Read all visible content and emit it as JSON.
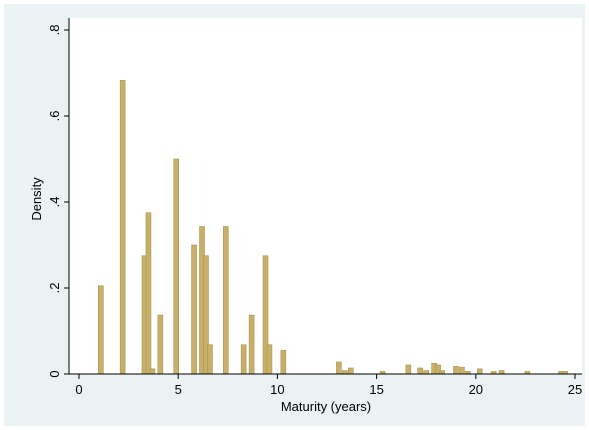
{
  "chart_data": {
    "type": "bar",
    "xlabel": "Maturity (years)",
    "ylabel": "Density",
    "xlim": [
      0,
      25
    ],
    "ylim": [
      0,
      0.8
    ],
    "xticks": [
      0,
      5,
      10,
      15,
      20,
      25
    ],
    "yticks": [
      0,
      0.2,
      0.4,
      0.6,
      0.8
    ],
    "ytick_labels": [
      "0",
      ".2",
      ".4",
      ".6",
      ".8"
    ],
    "grid": false,
    "bar_width": 0.25,
    "colors": {
      "bar": "#c8b06a",
      "bar_edge": "#a89550",
      "plot_bg": "#ffffff",
      "outer_bg": "#eaf2f3"
    },
    "x": [
      1.1,
      2.2,
      3.3,
      3.5,
      3.7,
      4.1,
      4.9,
      5.8,
      6.2,
      6.4,
      6.6,
      7.4,
      8.3,
      8.7,
      9.4,
      9.6,
      10.3,
      13.1,
      13.4,
      13.7,
      15.3,
      16.6,
      17.2,
      17.5,
      17.9,
      18.1,
      18.3,
      19.0,
      19.3,
      19.6,
      20.2,
      20.9,
      21.3,
      22.6,
      24.3,
      24.5
    ],
    "values": [
      0.205,
      0.683,
      0.275,
      0.375,
      0.012,
      0.137,
      0.5,
      0.3,
      0.343,
      0.275,
      0.068,
      0.343,
      0.068,
      0.137,
      0.275,
      0.068,
      0.055,
      0.028,
      0.008,
      0.014,
      0.006,
      0.021,
      0.014,
      0.008,
      0.025,
      0.021,
      0.008,
      0.018,
      0.016,
      0.006,
      0.012,
      0.006,
      0.008,
      0.006,
      0.006,
      0.006
    ]
  }
}
